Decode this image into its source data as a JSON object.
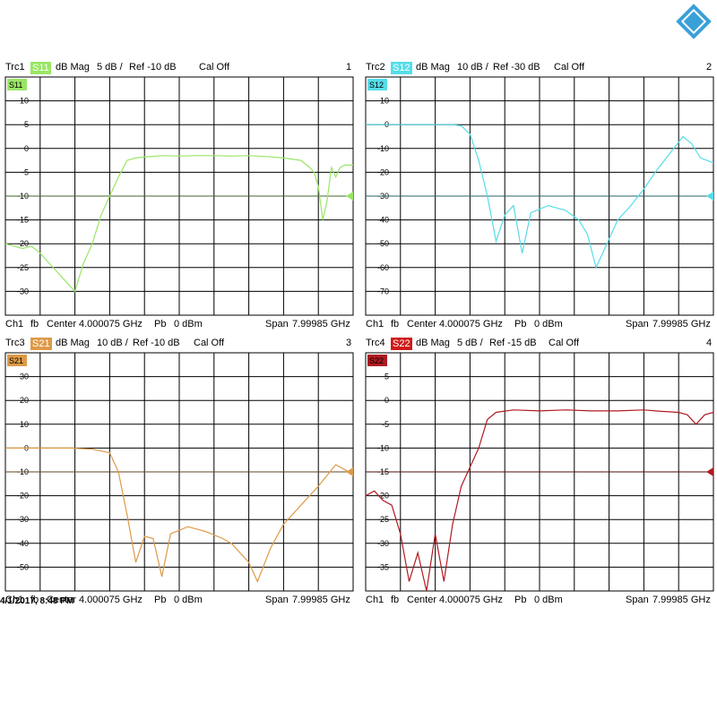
{
  "timestamp": "4/1/2017, 8:48 PM",
  "footer": {
    "ch": "Ch1",
    "fb": "fb",
    "center": "Center",
    "center_val": "4.000075 GHz",
    "pb": "Pb",
    "power": "0 dBm",
    "span": "Span",
    "span_val": "7.99985 GHz"
  },
  "colors": {
    "s11": "#99e666",
    "s12": "#55dde8",
    "s21": "#dd9a48",
    "s22": "#b01a22",
    "grid": "#000000"
  },
  "chart_data": [
    {
      "type": "line",
      "trace": "Trc1",
      "param": "S11",
      "format": "dB Mag",
      "scale": "5 dB /",
      "ref": "Ref -10 dB",
      "cal": "Cal Off",
      "number": "1",
      "ylim": [
        -35,
        15
      ],
      "ticks": [
        "10",
        "5",
        "0",
        "-5",
        "-10",
        "-15",
        "-20",
        "-25",
        "-30"
      ],
      "x_ghz": [
        0.0,
        0.2,
        0.4,
        0.6,
        0.8,
        1.0,
        1.2,
        1.4,
        1.6,
        1.8,
        2.0,
        2.2,
        2.4,
        2.6,
        2.8,
        3.0,
        3.2,
        3.6,
        4.0,
        4.4,
        4.8,
        5.2,
        5.6,
        6.0,
        6.4,
        6.8,
        7.0,
        7.1,
        7.2,
        7.3,
        7.4,
        7.5,
        7.6,
        7.7,
        7.8,
        7.99985
      ],
      "values": [
        -20,
        -20.5,
        -21,
        -20.5,
        -22,
        -24,
        -26,
        -28,
        -30,
        -24,
        -20,
        -14,
        -10,
        -6,
        -2.5,
        -2,
        -1.8,
        -1.5,
        -1.6,
        -1.5,
        -1.5,
        -1.6,
        -1.5,
        -1.7,
        -2,
        -2.5,
        -4,
        -5,
        -8,
        -15,
        -11,
        -4,
        -6,
        -4,
        -3.5,
        -3.5
      ]
    },
    {
      "type": "line",
      "trace": "Trc2",
      "param": "S12",
      "format": "dB Mag",
      "scale": "10 dB /",
      "ref": "Ref -30 dB",
      "cal": "Cal Off",
      "number": "2",
      "ylim": [
        -80,
        20
      ],
      "ticks": [
        "10",
        "0",
        "-10",
        "-20",
        "-30",
        "-40",
        "-50",
        "-60",
        "-70"
      ],
      "x_ghz": [
        0.0,
        0.4,
        0.8,
        1.2,
        1.6,
        2.0,
        2.2,
        2.4,
        2.6,
        2.8,
        3.0,
        3.2,
        3.4,
        3.6,
        3.8,
        4.2,
        4.6,
        4.9,
        5.1,
        5.3,
        5.5,
        5.8,
        6.1,
        6.4,
        6.7,
        7.0,
        7.3,
        7.5,
        7.7,
        7.99985
      ],
      "values": [
        0,
        0,
        0,
        0,
        0,
        0,
        -0.5,
        -4,
        -15,
        -30,
        -49,
        -38,
        -34,
        -54,
        -37,
        -34,
        -36,
        -40,
        -46,
        -60,
        -52,
        -40,
        -34,
        -27,
        -19,
        -12,
        -5,
        -8,
        -14,
        -16
      ]
    },
    {
      "type": "line",
      "trace": "Trc3",
      "param": "S21",
      "format": "dB Mag",
      "scale": "10 dB /",
      "ref": "Ref -10 dB",
      "cal": "Cal Off",
      "number": "3",
      "ylim": [
        -60,
        40
      ],
      "ticks": [
        "30",
        "20",
        "10",
        "0",
        "-10",
        "-20",
        "-30",
        "-40",
        "-50"
      ],
      "x_ghz": [
        0.0,
        0.5,
        1.0,
        1.5,
        2.0,
        2.4,
        2.6,
        2.8,
        3.0,
        3.2,
        3.4,
        3.6,
        3.8,
        4.2,
        4.6,
        5.0,
        5.2,
        5.6,
        5.8,
        6.1,
        6.4,
        6.8,
        7.2,
        7.6,
        7.8,
        7.99985
      ],
      "values": [
        0,
        0,
        0,
        0,
        -0.5,
        -2,
        -10,
        -28,
        -48,
        -37,
        -38,
        -54,
        -36,
        -33,
        -35,
        -38,
        -40,
        -48,
        -56,
        -42,
        -32,
        -24,
        -16,
        -7,
        -9,
        -11
      ]
    },
    {
      "type": "line",
      "trace": "Trc4",
      "param": "S22",
      "format": "dB Mag",
      "scale": "5 dB /",
      "ref": "Ref -15 dB",
      "cal": "Cal Off",
      "number": "4",
      "ylim": [
        -40,
        10
      ],
      "ticks": [
        "5",
        "0",
        "-5",
        "-10",
        "-15",
        "-20",
        "-25",
        "-30",
        "-35"
      ],
      "x_ghz": [
        0.0,
        0.2,
        0.4,
        0.6,
        0.8,
        1.0,
        1.2,
        1.4,
        1.6,
        1.8,
        2.0,
        2.2,
        2.4,
        2.6,
        2.8,
        3.0,
        3.4,
        4.0,
        4.6,
        5.2,
        5.8,
        6.4,
        6.8,
        7.2,
        7.4,
        7.6,
        7.8,
        7.99985
      ],
      "values": [
        -20,
        -19,
        -21,
        -22,
        -28,
        -38,
        -32,
        -40,
        -28,
        -38,
        -26,
        -18,
        -14,
        -10,
        -4,
        -2.5,
        -2,
        -2.2,
        -2,
        -2.2,
        -2.2,
        -2,
        -2.3,
        -2.5,
        -3,
        -5,
        -3,
        -2.5
      ]
    }
  ]
}
